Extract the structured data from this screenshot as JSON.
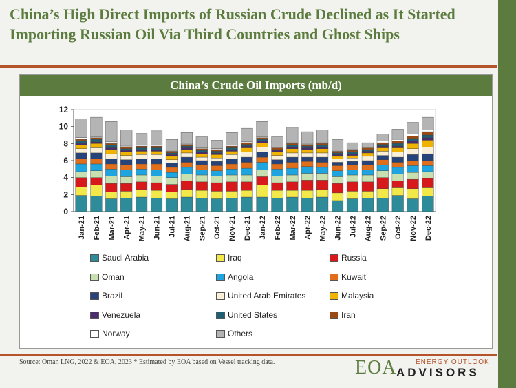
{
  "slide": {
    "title": "China’s High Direct Imports of Russian Crude Declined as It Started Importing Russian Oil Via Third Countries and Ghost Ships",
    "source_note": "Source: Oman LNG, 2022 & EOA, 2023   * Estimated by EOA based on Vessel tracking data.",
    "logo": {
      "main": "EOA",
      "small": "ENERGY OUTLOOK",
      "big": "ADVISORS"
    }
  },
  "colors": {
    "brand_green": "#5b7c3e",
    "accent_orange": "#b5532a"
  },
  "chart_data": {
    "type": "bar",
    "stacked": true,
    "title": "China’s Crude Oil Imports (mb/d)",
    "xlabel": "",
    "ylabel": "",
    "ylim": [
      0,
      12
    ],
    "yticks": [
      "0",
      "2",
      "4",
      "6",
      "8",
      "10",
      "12"
    ],
    "grid": false,
    "legend_position": "bottom",
    "categories": [
      "Jan-21",
      "Feb-21",
      "Mar-21",
      "Apr-21",
      "May-21",
      "Jun-21",
      "Jul-21",
      "Aug-21",
      "Sep-21",
      "Oct-21",
      "Nov-21",
      "Dec-21",
      "Jan-22",
      "Feb-22",
      "Mar-22",
      "Apr-22",
      "May-22",
      "Jun-22",
      "Jul-22",
      "Aug-22",
      "Sep-22",
      "Oct-22",
      "Nov-22",
      "Dec-22"
    ],
    "series": [
      {
        "name": "Saudi Arabia",
        "color": "#2e8b9a",
        "values": [
          1.9,
          1.8,
          1.5,
          1.6,
          1.7,
          1.6,
          1.5,
          1.7,
          1.6,
          1.5,
          1.6,
          1.7,
          1.7,
          1.6,
          1.7,
          1.6,
          1.7,
          1.3,
          1.5,
          1.6,
          1.6,
          1.9,
          1.5,
          1.8
        ]
      },
      {
        "name": "Iraq",
        "color": "#f2e84a",
        "values": [
          1.0,
          1.3,
          0.8,
          0.8,
          0.9,
          0.9,
          0.8,
          0.9,
          0.9,
          0.9,
          0.8,
          0.8,
          1.4,
          0.9,
          0.8,
          0.9,
          0.9,
          0.9,
          0.9,
          0.8,
          1.1,
          0.9,
          1.2,
          1.0
        ]
      },
      {
        "name": "Russia",
        "color": "#d7191c",
        "values": [
          1.1,
          0.9,
          1.0,
          0.9,
          0.9,
          0.9,
          0.9,
          1.0,
          1.0,
          1.0,
          1.1,
          1.0,
          1.0,
          0.9,
          1.0,
          1.2,
          1.1,
          1.1,
          1.1,
          1.1,
          1.3,
          0.8,
          1.1,
          1.1
        ]
      },
      {
        "name": "Oman",
        "color": "#c8e0b0",
        "values": [
          0.7,
          0.8,
          0.9,
          0.8,
          0.8,
          0.8,
          0.8,
          0.8,
          0.8,
          0.8,
          0.8,
          0.8,
          0.8,
          0.8,
          0.8,
          0.8,
          0.8,
          0.8,
          0.8,
          0.8,
          0.8,
          0.8,
          0.8,
          0.8
        ]
      },
      {
        "name": "Angola",
        "color": "#1ea5e0",
        "values": [
          0.9,
          0.8,
          0.8,
          0.8,
          0.7,
          0.7,
          0.6,
          0.8,
          0.6,
          0.6,
          0.7,
          0.8,
          0.9,
          0.8,
          0.8,
          0.8,
          0.7,
          0.7,
          0.6,
          0.6,
          0.7,
          0.8,
          0.8,
          0.7
        ]
      },
      {
        "name": "Kuwait",
        "color": "#e06e1a",
        "values": [
          0.6,
          0.6,
          0.6,
          0.6,
          0.6,
          0.7,
          0.6,
          0.6,
          0.6,
          0.6,
          0.6,
          0.7,
          0.6,
          0.6,
          0.7,
          0.6,
          0.6,
          0.6,
          0.6,
          0.6,
          0.6,
          0.6,
          0.6,
          0.6
        ]
      },
      {
        "name": "Brazil",
        "color": "#26447a",
        "values": [
          0.7,
          0.7,
          0.6,
          0.6,
          0.6,
          0.6,
          0.5,
          0.6,
          0.5,
          0.5,
          0.6,
          0.6,
          0.6,
          0.5,
          0.6,
          0.5,
          0.6,
          0.4,
          0.4,
          0.5,
          0.5,
          0.6,
          0.7,
          0.8
        ]
      },
      {
        "name": "United Arab Emirates",
        "color": "#faf0d8",
        "values": [
          0.5,
          0.6,
          0.6,
          0.5,
          0.5,
          0.5,
          0.4,
          0.5,
          0.4,
          0.4,
          0.5,
          0.6,
          0.6,
          0.5,
          0.5,
          0.5,
          0.5,
          0.4,
          0.4,
          0.5,
          0.5,
          0.6,
          0.7,
          0.8
        ]
      },
      {
        "name": "Malaysia",
        "color": "#f0b400",
        "values": [
          0.4,
          0.5,
          0.5,
          0.4,
          0.4,
          0.4,
          0.4,
          0.4,
          0.4,
          0.4,
          0.4,
          0.5,
          0.5,
          0.4,
          0.5,
          0.4,
          0.5,
          0.3,
          0.3,
          0.4,
          0.4,
          0.5,
          0.6,
          0.8
        ]
      },
      {
        "name": "Venezuela",
        "color": "#4b2d6b",
        "values": [
          0.2,
          0.2,
          0.2,
          0.2,
          0.2,
          0.2,
          0.2,
          0.2,
          0.2,
          0.2,
          0.2,
          0.2,
          0.2,
          0.2,
          0.2,
          0.2,
          0.2,
          0.2,
          0.2,
          0.2,
          0.2,
          0.2,
          0.3,
          0.3
        ]
      },
      {
        "name": "United States",
        "color": "#1f5f73",
        "values": [
          0.3,
          0.3,
          0.3,
          0.2,
          0.2,
          0.2,
          0.2,
          0.2,
          0.2,
          0.2,
          0.2,
          0.2,
          0.2,
          0.1,
          0.2,
          0.2,
          0.2,
          0.2,
          0.2,
          0.2,
          0.2,
          0.3,
          0.3,
          0.3
        ]
      },
      {
        "name": "Iran",
        "color": "#9a4a14",
        "values": [
          0.2,
          0.2,
          0.2,
          0.2,
          0.2,
          0.2,
          0.2,
          0.2,
          0.2,
          0.2,
          0.2,
          0.2,
          0.2,
          0.2,
          0.2,
          0.2,
          0.2,
          0.2,
          0.2,
          0.2,
          0.2,
          0.3,
          0.3,
          0.4
        ]
      },
      {
        "name": "Norway",
        "color": "#ffffff",
        "values": [
          0.2,
          0.1,
          0.2,
          0.1,
          0.1,
          0.1,
          0.1,
          0.1,
          0.1,
          0.1,
          0.1,
          0.1,
          0.1,
          0.1,
          0.1,
          0.1,
          0.1,
          0.1,
          0.1,
          0.1,
          0.2,
          0.2,
          0.2,
          0.2
        ]
      },
      {
        "name": "Others",
        "color": "#b4b4b4",
        "values": [
          2.2,
          2.3,
          2.4,
          1.9,
          1.4,
          1.7,
          1.3,
          1.3,
          1.3,
          1.0,
          1.5,
          1.6,
          1.8,
          1.2,
          1.8,
          1.4,
          1.5,
          1.3,
          0.8,
          0.5,
          0.8,
          1.2,
          1.4,
          1.5
        ]
      }
    ]
  }
}
